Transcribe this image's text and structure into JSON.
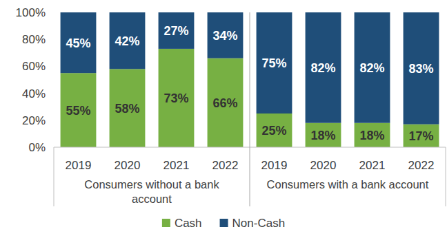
{
  "chart_data": {
    "type": "bar",
    "stacked": true,
    "data_labels": true,
    "legend": "bottom",
    "grid": false,
    "categories": [
      "2019",
      "2020",
      "2021",
      "2022",
      "2019",
      "2020",
      "2021",
      "2022"
    ],
    "groups": [
      "Consumers without a bank account",
      "Consumers with a bank account"
    ],
    "series": [
      {
        "name": "Cash",
        "color": "#77b043",
        "values": [
          55,
          58,
          73,
          66,
          25,
          18,
          18,
          17
        ],
        "value_labels": [
          "55%",
          "58%",
          "73%",
          "66%",
          "25%",
          "18%",
          "18%",
          "17%"
        ]
      },
      {
        "name": "Non-Cash",
        "color": "#1f4e79",
        "values": [
          45,
          42,
          27,
          34,
          75,
          82,
          82,
          83
        ],
        "value_labels": [
          "45%",
          "42%",
          "27%",
          "34%",
          "75%",
          "82%",
          "82%",
          "83%"
        ]
      }
    ],
    "ylim": [
      0,
      100
    ],
    "yticks": [
      {
        "value": 0,
        "label": "0%"
      },
      {
        "value": 20,
        "label": "20%"
      },
      {
        "value": 40,
        "label": "40%"
      },
      {
        "value": 60,
        "label": "60%"
      },
      {
        "value": 80,
        "label": "80%"
      },
      {
        "value": 100,
        "label": "100%"
      }
    ]
  }
}
